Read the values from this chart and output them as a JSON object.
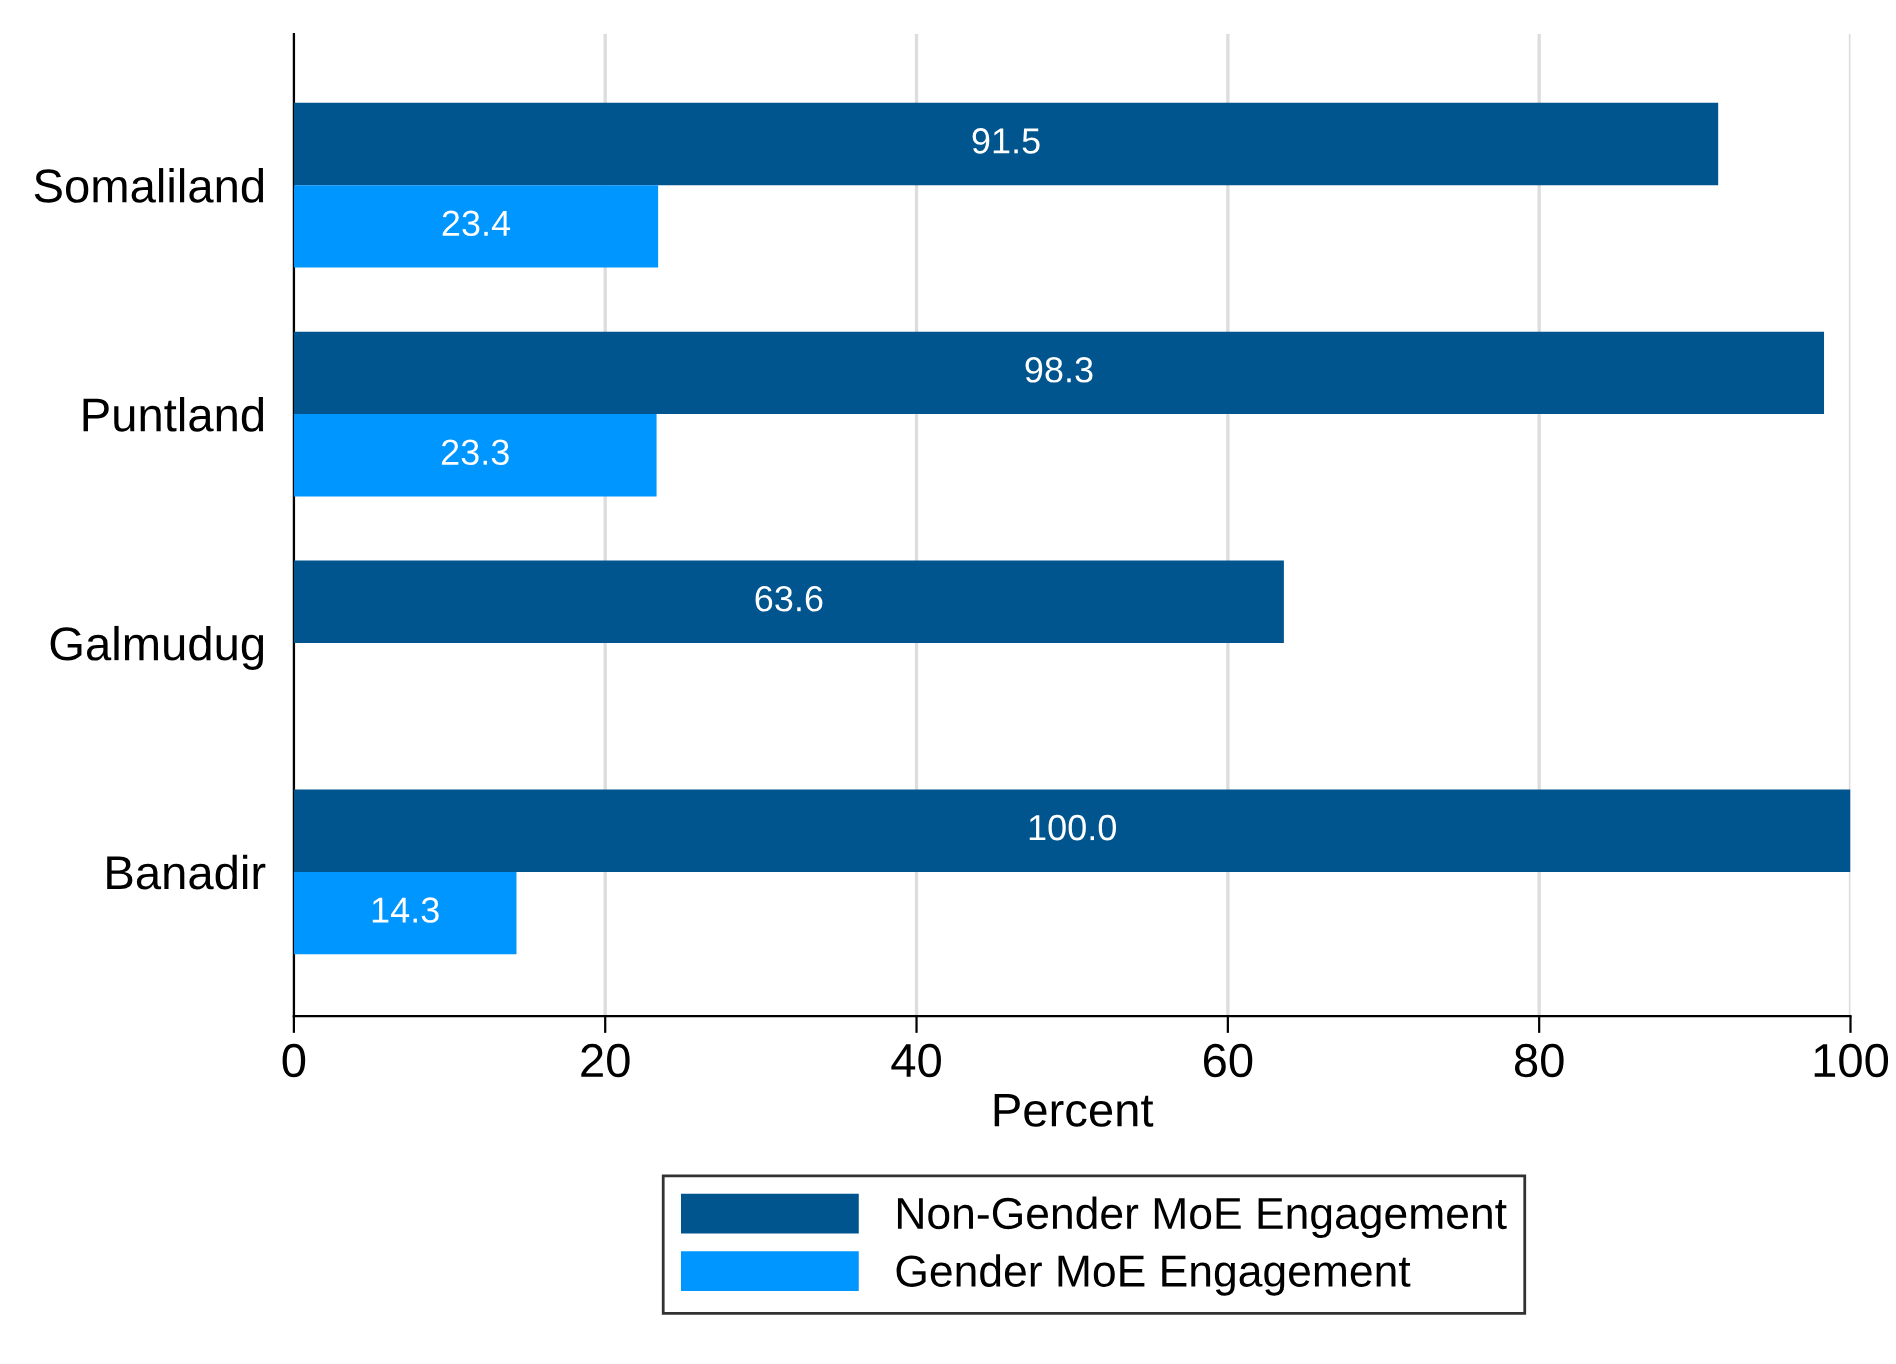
{
  "chart_data": {
    "type": "bar",
    "orientation": "horizontal",
    "xlabel": "Percent",
    "categories": [
      "Somaliland",
      "Puntland",
      "Galmudug",
      "Banadir"
    ],
    "series": [
      {
        "name": "Non-Gender MoE Engagement",
        "color": "#00558f",
        "values": [
          91.5,
          98.3,
          63.6,
          100
        ],
        "value_labels": [
          "91.5",
          "98.3",
          "63.6",
          "100.0"
        ]
      },
      {
        "name": "Gender MoE Engagement",
        "color": "#0096ff",
        "values": [
          23.4,
          23.3,
          null,
          14.3
        ],
        "value_labels": [
          "23.4",
          "23.3",
          null,
          "14.3"
        ]
      }
    ],
    "xlim": [
      0,
      100
    ],
    "xticks": [
      0,
      20,
      40,
      60,
      80,
      100
    ],
    "grid": "x",
    "legend": "bottom"
  }
}
